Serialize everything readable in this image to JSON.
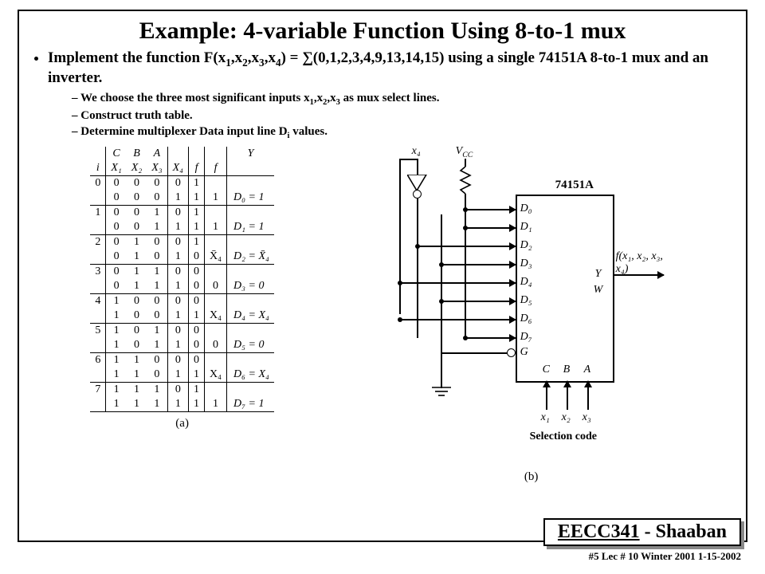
{
  "title": "Example:  4-variable Function Using 8-to-1 mux",
  "bullet1_pre": "Implement the function   F(x",
  "b1_s1": "1",
  "b1_c1": ",x",
  "b1_s2": "2",
  "b1_c2": ",x",
  "b1_s3": "3",
  "b1_c3": ",x",
  "b1_s4": "4",
  "b1_mid": ") =  ∑(0,1,2,3,4,9,13,14,15)   using a single  74151A   8-to-1 mux and an inverter.",
  "sub1_pre": "We choose the three most significant inputs x",
  "sub1_s1": "1",
  "sub1_c1": ",x",
  "sub1_s2": "2",
  "sub1_c2": ",x",
  "sub1_s3": "3",
  "sub1_post": " as mux select lines.",
  "sub2": "Construct truth table.",
  "sub3_pre": "Determine multiplexer Data  input line D",
  "sub3_i": "i",
  "sub3_post": "  values.",
  "th": {
    "i": "i",
    "C": "C",
    "B": "B",
    "A": "A",
    "X1": "X₁",
    "X2": "X₂",
    "X3": "X₃",
    "X4": "X₄",
    "f": "f",
    "ff": "f",
    "Y": "Y"
  },
  "rows": [
    [
      "0",
      "0",
      "0",
      "0",
      "0",
      "1",
      "",
      ""
    ],
    [
      "",
      "0",
      "0",
      "0",
      "1",
      "1",
      "1",
      "D₀ = 1"
    ],
    [
      "1",
      "0",
      "0",
      "1",
      "0",
      "1",
      "",
      ""
    ],
    [
      "",
      "0",
      "0",
      "1",
      "1",
      "1",
      "1",
      "D₁ = 1"
    ],
    [
      "2",
      "0",
      "1",
      "0",
      "0",
      "1",
      "",
      ""
    ],
    [
      "",
      "0",
      "1",
      "0",
      "1",
      "0",
      "X̄₄",
      "D₂ = X̄₄"
    ],
    [
      "3",
      "0",
      "1",
      "1",
      "0",
      "0",
      "",
      ""
    ],
    [
      "",
      "0",
      "1",
      "1",
      "1",
      "0",
      "0",
      "D₃ = 0"
    ],
    [
      "4",
      "1",
      "0",
      "0",
      "0",
      "0",
      "",
      ""
    ],
    [
      "",
      "1",
      "0",
      "0",
      "1",
      "1",
      "X₄",
      "D₄ = X₄"
    ],
    [
      "5",
      "1",
      "0",
      "1",
      "0",
      "0",
      "",
      ""
    ],
    [
      "",
      "1",
      "0",
      "1",
      "1",
      "0",
      "0",
      "D₅ = 0"
    ],
    [
      "6",
      "1",
      "1",
      "0",
      "0",
      "0",
      "",
      ""
    ],
    [
      "",
      "1",
      "1",
      "0",
      "1",
      "1",
      "X₄",
      "D₆ = X₄"
    ],
    [
      "7",
      "1",
      "1",
      "1",
      "0",
      "1",
      "",
      ""
    ],
    [
      "",
      "1",
      "1",
      "1",
      "1",
      "1",
      "1",
      "D₇ = 1"
    ]
  ],
  "cap_a": "(a)",
  "cap_b": "(b)",
  "circuit": {
    "x4": "x₄",
    "vcc": "V_CC",
    "chip": "74151A",
    "D": [
      "D₀",
      "D₁",
      "D₂",
      "D₃",
      "D₄",
      "D₅",
      "D₆",
      "D₇"
    ],
    "G": "G",
    "Y": "Y",
    "W": "W",
    "out": "f(x₁, x₂, x₃, x₄)",
    "sel_top": [
      "C",
      "B",
      "A"
    ],
    "sel_bot": [
      "x₁",
      "x₂",
      "x₃"
    ],
    "selcode": "Selection code"
  },
  "footer": {
    "course": "EECC341",
    "sep": " - ",
    "author": "Shaaban",
    "note": "#5  Lec # 10   Winter 2001  1-15-2002"
  }
}
